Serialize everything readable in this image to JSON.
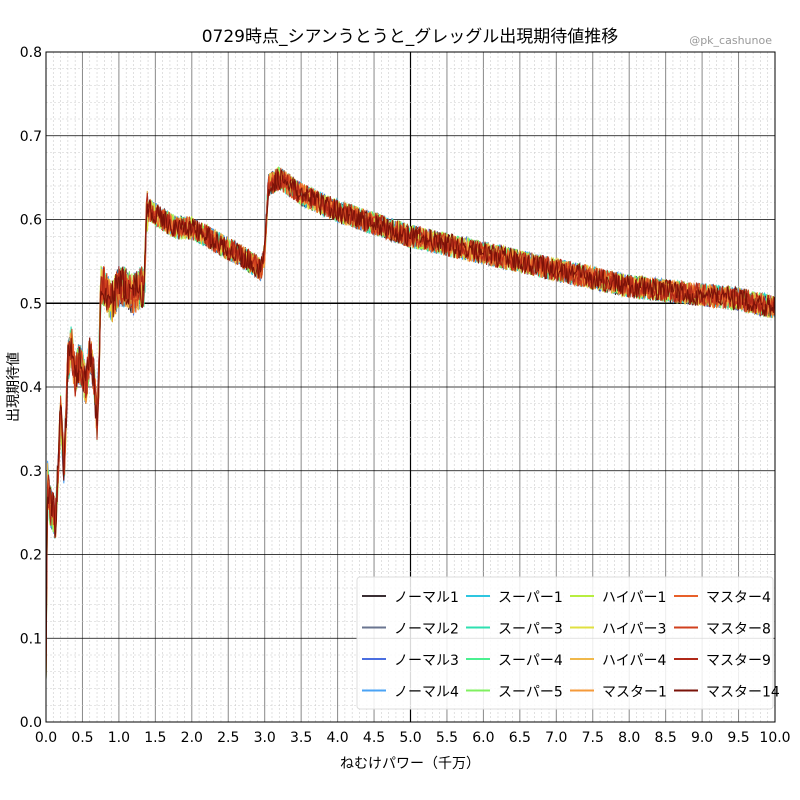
{
  "chart_data": {
    "type": "line",
    "title": "0729時点_シアンうとうと_グレッグル出現期待値推移",
    "watermark": "@pk_cashunoe",
    "xlabel": "ねむけパワー（千万）",
    "ylabel": "出現期待値",
    "xlim": [
      0,
      10
    ],
    "ylim": [
      0,
      0.8
    ],
    "xticks": [
      "0.0",
      "0.5",
      "1.0",
      "1.5",
      "2.0",
      "2.5",
      "3.0",
      "3.5",
      "4.0",
      "4.5",
      "5.0",
      "5.5",
      "6.0",
      "6.5",
      "7.0",
      "7.5",
      "8.0",
      "8.5",
      "9.0",
      "9.5",
      "10.0"
    ],
    "yticks": [
      "0.0",
      "0.1",
      "0.2",
      "0.3",
      "0.4",
      "0.5",
      "0.6",
      "0.7",
      "0.8"
    ],
    "grid": true,
    "legend_position": "bottom-right",
    "base_curve": {
      "x": [
        0,
        0.02,
        0.05,
        0.1,
        0.13,
        0.15,
        0.2,
        0.25,
        0.3,
        0.35,
        0.4,
        0.45,
        0.5,
        0.55,
        0.6,
        0.65,
        0.7,
        0.72,
        0.75,
        0.8,
        0.9,
        1.0,
        1.1,
        1.2,
        1.3,
        1.35,
        1.38,
        1.45,
        1.6,
        1.8,
        2.0,
        2.2,
        2.4,
        2.6,
        2.8,
        2.95,
        3.0,
        3.05,
        3.2,
        3.5,
        4.0,
        4.5,
        5.0,
        5.5,
        6.0,
        6.5,
        7.0,
        7.5,
        8.0,
        8.5,
        9.0,
        9.5,
        10.0
      ],
      "y": [
        0.05,
        0.29,
        0.26,
        0.25,
        0.24,
        0.27,
        0.37,
        0.3,
        0.43,
        0.45,
        0.41,
        0.43,
        0.42,
        0.4,
        0.44,
        0.42,
        0.36,
        0.4,
        0.52,
        0.52,
        0.5,
        0.52,
        0.52,
        0.51,
        0.52,
        0.52,
        0.61,
        0.61,
        0.6,
        0.59,
        0.59,
        0.58,
        0.57,
        0.56,
        0.55,
        0.54,
        0.56,
        0.64,
        0.65,
        0.63,
        0.61,
        0.595,
        0.58,
        0.57,
        0.56,
        0.55,
        0.54,
        0.53,
        0.52,
        0.515,
        0.51,
        0.505,
        0.495
      ]
    },
    "series": [
      {
        "name": "ノーマル1",
        "color": "#3a2e33"
      },
      {
        "name": "ノーマル2",
        "color": "#6a7590"
      },
      {
        "name": "ノーマル3",
        "color": "#4a6ee0"
      },
      {
        "name": "ノーマル4",
        "color": "#4aa3f5"
      },
      {
        "name": "スーパー1",
        "color": "#2ec6e0"
      },
      {
        "name": "スーパー3",
        "color": "#2ee0b0"
      },
      {
        "name": "スーパー4",
        "color": "#4af090"
      },
      {
        "name": "スーパー5",
        "color": "#80f060"
      },
      {
        "name": "ハイパー1",
        "color": "#b8ee40"
      },
      {
        "name": "ハイパー3",
        "color": "#e0e040"
      },
      {
        "name": "ハイパー4",
        "color": "#f0b84a"
      },
      {
        "name": "マスター1",
        "color": "#f59a3a"
      },
      {
        "name": "マスター4",
        "color": "#e8602a"
      },
      {
        "name": "マスター8",
        "color": "#d0401e"
      },
      {
        "name": "マスター9",
        "color": "#b02818"
      },
      {
        "name": "マスター14",
        "color": "#7a1208"
      }
    ]
  }
}
